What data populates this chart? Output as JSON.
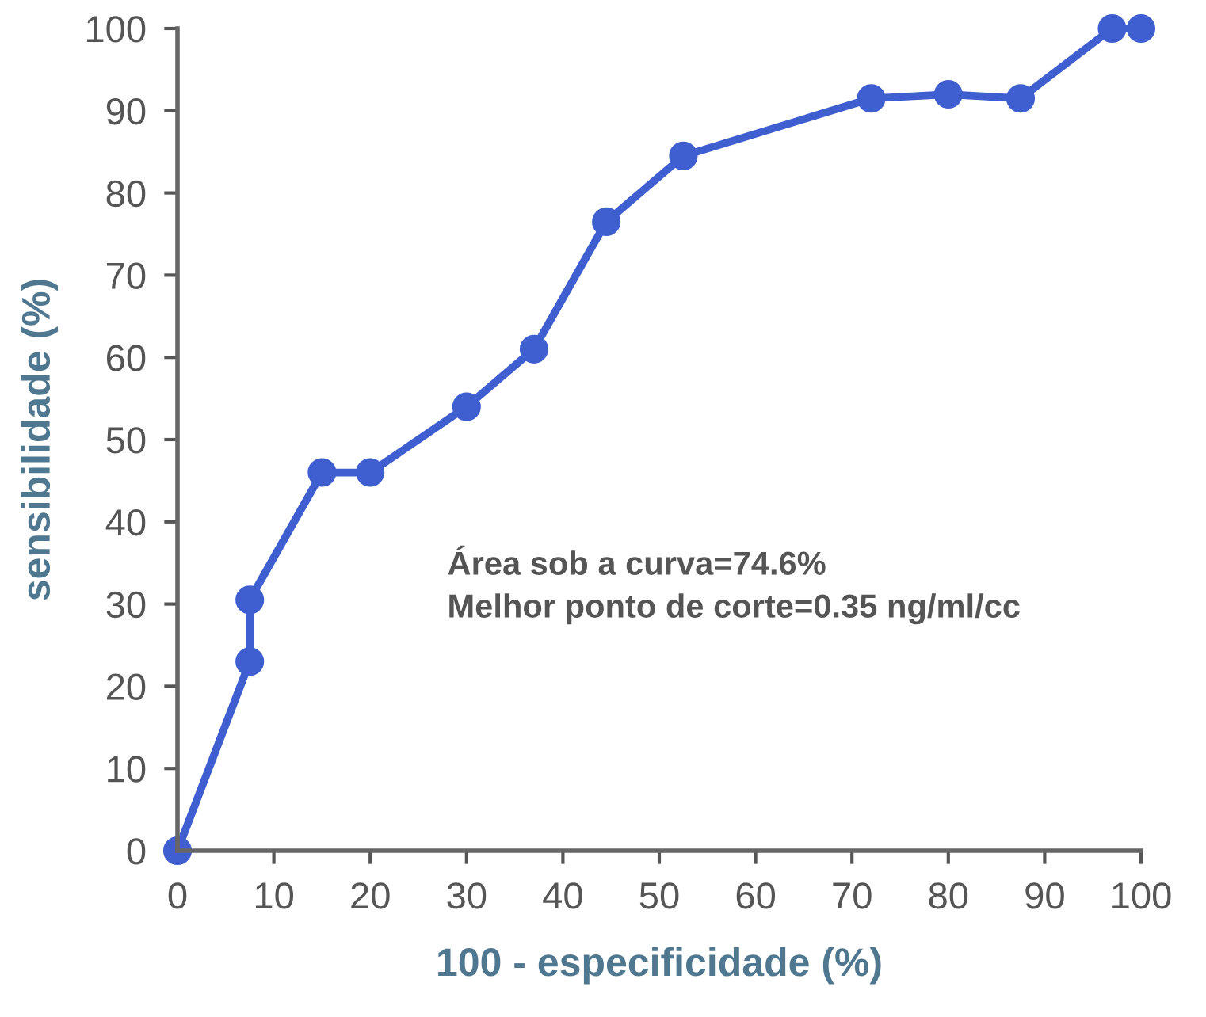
{
  "chart_data": {
    "type": "line",
    "xlabel": "100 - especificidade (%)",
    "ylabel": "sensibilidade (%)",
    "x": [
      0,
      7.5,
      7.5,
      15,
      20,
      30,
      37,
      44.5,
      52.5,
      72,
      80,
      87.5,
      97,
      100
    ],
    "series": [
      {
        "color": "#3f5fd0",
        "values": [
          0,
          23,
          30.5,
          46,
          46,
          54,
          61,
          76.5,
          84.5,
          91.5,
          92,
          91.5,
          100,
          100
        ]
      }
    ],
    "xlim": [
      0,
      100
    ],
    "ylim": [
      0,
      100
    ],
    "xticks": [
      0,
      10,
      20,
      30,
      40,
      50,
      60,
      70,
      80,
      90,
      100
    ],
    "yticks": [
      0,
      10,
      20,
      30,
      40,
      50,
      60,
      70,
      80,
      90,
      100
    ],
    "marker": "circle",
    "line_style": "solid",
    "grid": false,
    "legend": false,
    "annotations": [
      "Área sob a curva=74.6%\nMelhor ponto de corte=0.35 ng/ml/cc"
    ]
  }
}
